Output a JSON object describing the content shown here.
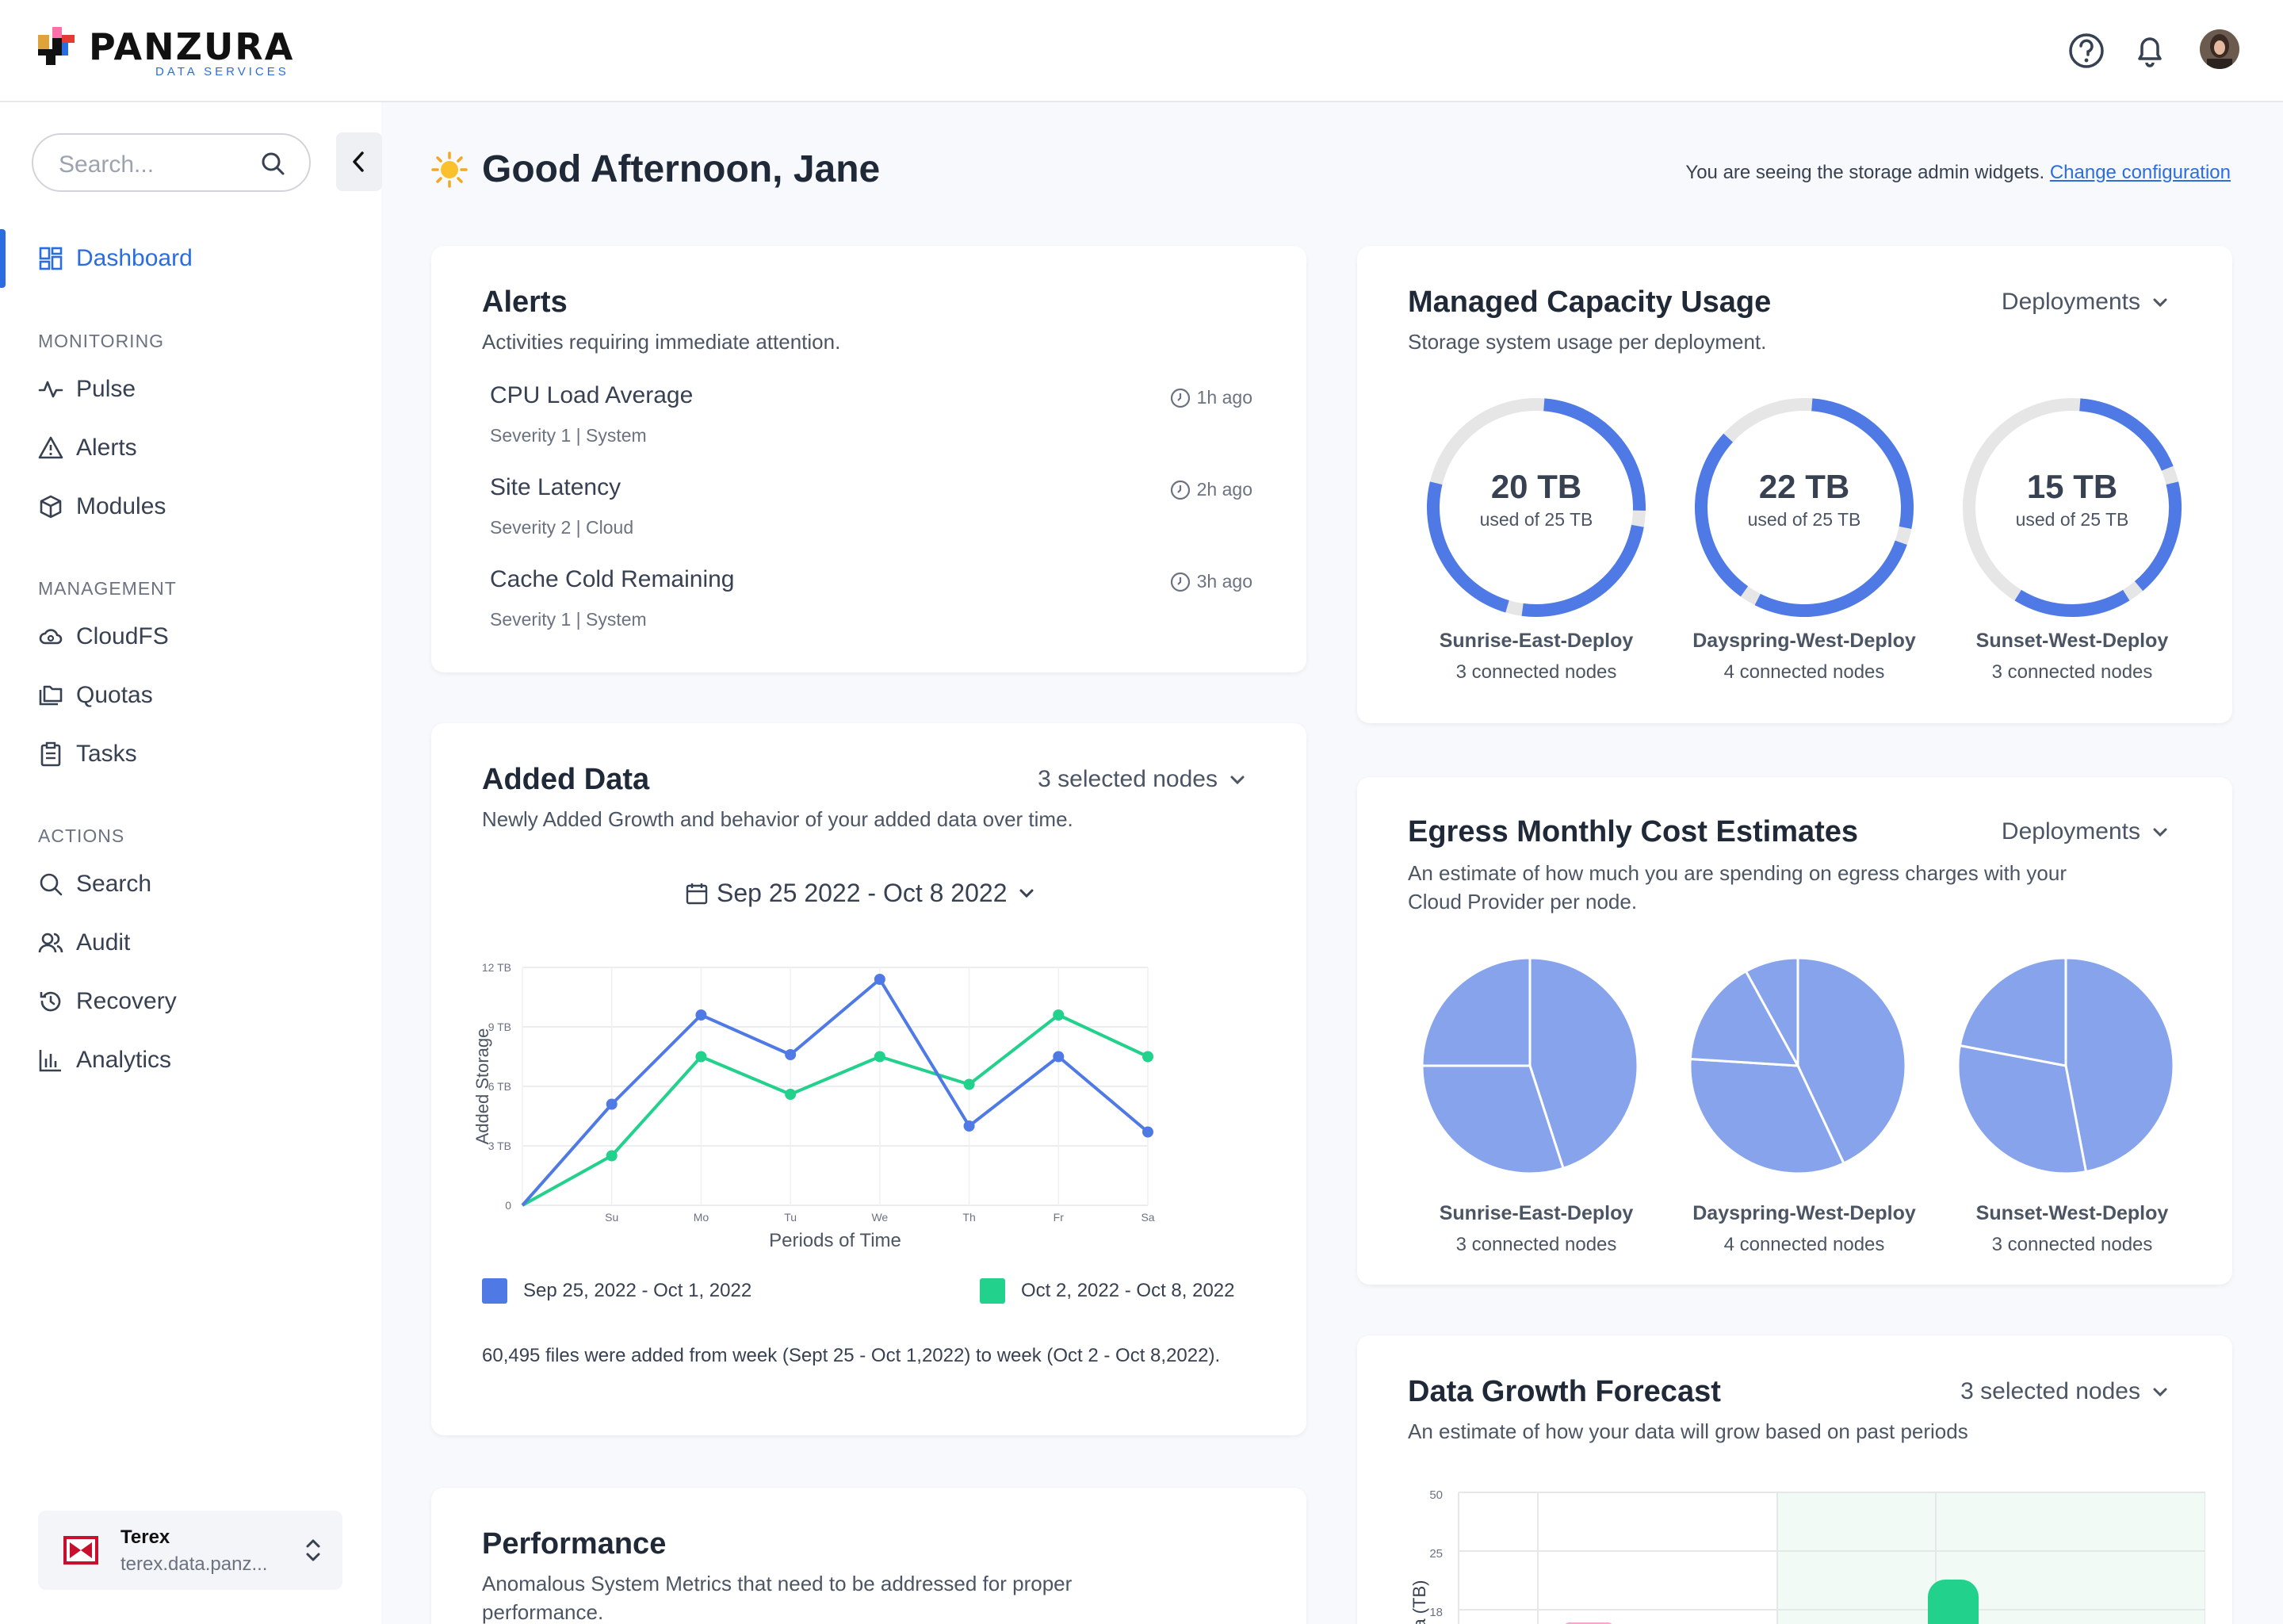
{
  "brand": {
    "name": "PANZURA",
    "tagline": "DATA SERVICES"
  },
  "sidebar": {
    "search_placeholder": "Search...",
    "dashboard": "Dashboard",
    "sections": [
      {
        "label": "MONITORING",
        "items": [
          "Pulse",
          "Alerts",
          "Modules"
        ]
      },
      {
        "label": "MANAGEMENT",
        "items": [
          "CloudFS",
          "Quotas",
          "Tasks"
        ]
      },
      {
        "label": "ACTIONS",
        "items": [
          "Search",
          "Audit",
          "Recovery",
          "Analytics"
        ]
      }
    ],
    "org": {
      "name": "Terex",
      "domain": "terex.data.panz..."
    }
  },
  "header": {
    "greeting": "Good Afternoon, Jane",
    "config_text": "You are seeing the storage admin widgets.",
    "config_link": "Change configuration"
  },
  "alerts": {
    "title": "Alerts",
    "subtitle": "Activities requiring immediate attention.",
    "items": [
      {
        "title": "CPU Load Average",
        "meta": "Severity 1 | System",
        "time": "1h ago"
      },
      {
        "title": "Site Latency",
        "meta": "Severity 2 | Cloud",
        "time": "2h ago"
      },
      {
        "title": "Cache Cold Remaining",
        "meta": "Severity 1 | System",
        "time": "3h ago"
      }
    ]
  },
  "capacity": {
    "title": "Managed Capacity Usage",
    "subtitle": "Storage system usage per deployment.",
    "filter": "Deployments",
    "deployments": [
      {
        "used": "20 TB",
        "of": "used of 25 TB",
        "name": "Sunrise-East-Deploy",
        "nodes": "3 connected nodes",
        "fraction": 0.8
      },
      {
        "used": "22 TB",
        "of": "used of 25 TB",
        "name": "Dayspring-West-Deploy",
        "nodes": "4 connected nodes",
        "fraction": 0.88
      },
      {
        "used": "15 TB",
        "of": "used of 25 TB",
        "name": "Sunset-West-Deploy",
        "nodes": "3 connected nodes",
        "fraction": 0.6
      }
    ]
  },
  "added_data": {
    "title": "Added Data",
    "subtitle": "Newly Added Growth and behavior of your added data over time.",
    "filter": "3 selected nodes",
    "date_range": "Sep 25 2022 - Oct 8 2022",
    "note": "60,495 files were added from week (Sept 25 - Oct 1,2022) to week (Oct 2 - Oct 8,2022)."
  },
  "chart_data": {
    "type": "line",
    "title": "",
    "xlabel": "Periods of Time",
    "ylabel": "Added Storage",
    "x": [
      "",
      "Su",
      "Mo",
      "Tu",
      "We",
      "Th",
      "Fr",
      "Sa"
    ],
    "y_ticks": [
      "0",
      "3 TB",
      "6 TB",
      "9 TB",
      "12 TB"
    ],
    "ylim": [
      0,
      12
    ],
    "grid": true,
    "series": [
      {
        "name": "Sep 25, 2022 - Oct 1, 2022",
        "color": "#4f7ae6",
        "values": [
          0,
          5.1,
          9.6,
          7.6,
          11.4,
          4,
          7.5,
          3.7
        ]
      },
      {
        "name": "Oct 2, 2022 - Oct 8, 2022",
        "color": "#21d18c",
        "values": [
          0,
          2.5,
          7.5,
          5.6,
          7.5,
          6.1,
          9.6,
          7.5
        ]
      }
    ]
  },
  "egress": {
    "title": "Egress Monthly Cost Estimates",
    "subtitle_lines": [
      "An estimate of how much you are spending on egress charges with your",
      "Cloud Provider per node."
    ],
    "filter": "Deployments",
    "pies": [
      {
        "name": "Sunrise-East-Deploy",
        "nodes": "3 connected nodes",
        "slices": [
          0.45,
          0.3,
          0.25
        ]
      },
      {
        "name": "Dayspring-West-Deploy",
        "nodes": "4 connected nodes",
        "slices": [
          0.43,
          0.33,
          0.16,
          0.08
        ]
      },
      {
        "name": "Sunset-West-Deploy",
        "nodes": "3 connected nodes",
        "slices": [
          0.47,
          0.31,
          0.22
        ]
      }
    ]
  },
  "forecast": {
    "title": "Data Growth Forecast",
    "subtitle": "An estimate of how your data will grow based on past periods",
    "filter": "3 selected nodes",
    "y_ticks": [
      "50",
      "25",
      "18"
    ],
    "ylabel": "ata (TB)"
  },
  "performance": {
    "title": "Performance",
    "subtitle_lines": [
      "Anomalous System Metrics that need to be addressed for proper",
      "performance."
    ]
  },
  "colors": {
    "accent": "#2b6de0",
    "series_blue": "#4f7ae6",
    "series_green": "#21d18c",
    "donut_track": "#e6e6e6",
    "pie": "#86a3ec"
  }
}
